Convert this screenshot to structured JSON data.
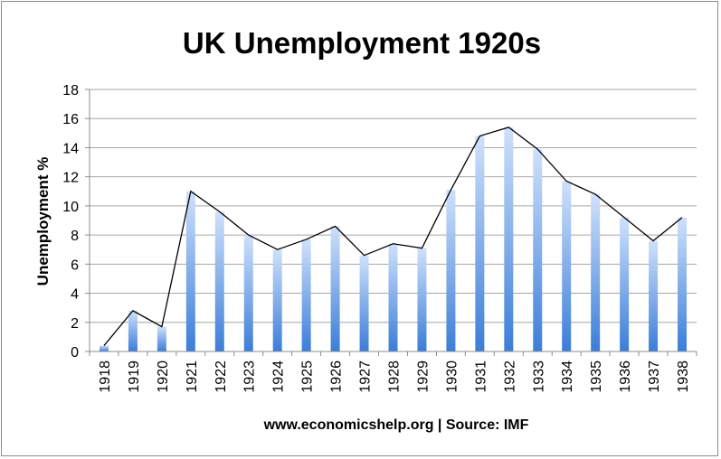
{
  "chart_data": {
    "type": "bar",
    "title": "UK Unemployment 1920s",
    "ylabel": "Unemployment %",
    "xlabel": "www.economicshelp.org | Source: IMF",
    "ylim": [
      0,
      18
    ],
    "yticks": [
      0,
      2,
      4,
      6,
      8,
      10,
      12,
      14,
      16,
      18
    ],
    "grid": true,
    "overlay_line": true,
    "categories": [
      "1918",
      "1919",
      "1920",
      "1921",
      "1922",
      "1923",
      "1924",
      "1925",
      "1926",
      "1927",
      "1928",
      "1929",
      "1930",
      "1931",
      "1932",
      "1933",
      "1934",
      "1935",
      "1936",
      "1937",
      "1938"
    ],
    "values": [
      0.4,
      2.8,
      1.7,
      11.0,
      9.6,
      8.0,
      7.0,
      7.7,
      8.6,
      6.6,
      7.4,
      7.1,
      11.1,
      14.8,
      15.4,
      13.9,
      11.7,
      10.8,
      9.2,
      7.6,
      9.2
    ],
    "colors": {
      "bar_dark": "#3b7dd8",
      "bar_light": "#cfe1fb",
      "line": "#000000",
      "grid": "#a6a6a6"
    }
  }
}
